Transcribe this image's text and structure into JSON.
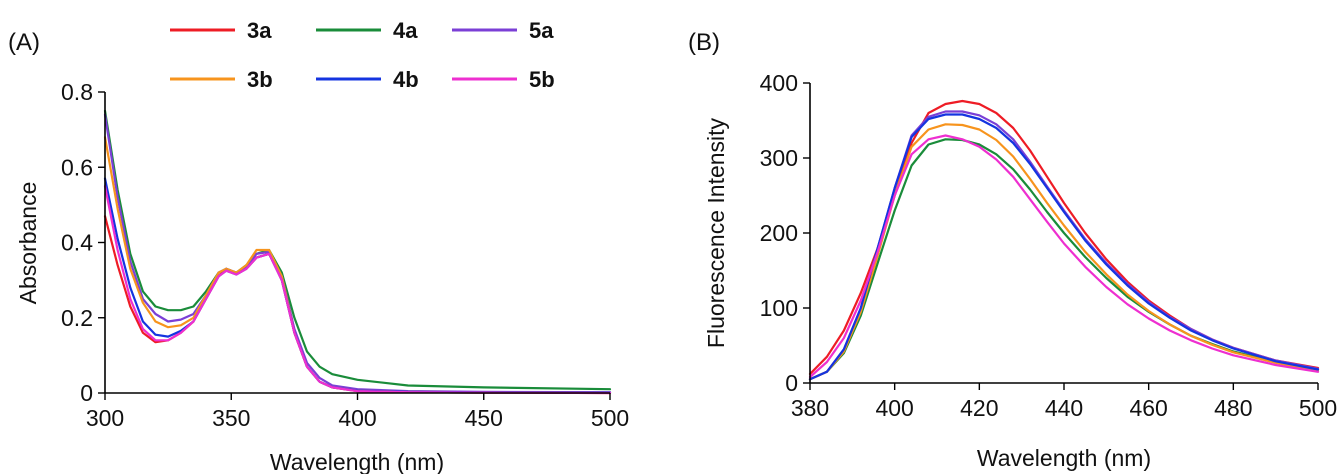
{
  "figure": {
    "panel_a_label": "(A)",
    "panel_b_label": "(B)"
  },
  "legend": {
    "items": [
      {
        "label": "3a",
        "color": "#ee1c25"
      },
      {
        "label": "4a",
        "color": "#1a8c3a"
      },
      {
        "label": "5a",
        "color": "#7b3fd6"
      },
      {
        "label": "3b",
        "color": "#f7941d"
      },
      {
        "label": "4b",
        "color": "#1434e0"
      },
      {
        "label": "5b",
        "color": "#ee2fd0"
      }
    ]
  },
  "chart_data": [
    {
      "type": "line",
      "panel": "(A)",
      "xlabel": "Wavelength (nm)",
      "ylabel": "Absorbance",
      "xlim": [
        300,
        500
      ],
      "ylim": [
        0,
        0.8
      ],
      "xticks": [
        300,
        350,
        400,
        450,
        500
      ],
      "yticks": [
        0,
        0.2,
        0.4,
        0.6,
        0.8
      ],
      "ytick_labels": [
        "0",
        "0.2",
        "0.4",
        "0.6",
        "0.8"
      ],
      "x": [
        300,
        305,
        310,
        315,
        320,
        325,
        330,
        335,
        340,
        345,
        348,
        352,
        356,
        360,
        365,
        370,
        375,
        380,
        385,
        390,
        400,
        420,
        450,
        500
      ],
      "series": [
        {
          "name": "3a",
          "color": "#ee1c25",
          "values": [
            0.47,
            0.34,
            0.23,
            0.16,
            0.135,
            0.14,
            0.16,
            0.19,
            0.25,
            0.31,
            0.33,
            0.32,
            0.33,
            0.36,
            0.37,
            0.3,
            0.16,
            0.07,
            0.03,
            0.015,
            0.005,
            0.002,
            0.001,
            0.0
          ]
        },
        {
          "name": "4a",
          "color": "#1a8c3a",
          "values": [
            0.75,
            0.54,
            0.37,
            0.27,
            0.23,
            0.22,
            0.22,
            0.23,
            0.27,
            0.32,
            0.33,
            0.32,
            0.34,
            0.37,
            0.38,
            0.32,
            0.2,
            0.11,
            0.07,
            0.05,
            0.035,
            0.02,
            0.015,
            0.01
          ]
        },
        {
          "name": "5a",
          "color": "#7b3fd6",
          "values": [
            0.74,
            0.52,
            0.35,
            0.25,
            0.21,
            0.19,
            0.195,
            0.21,
            0.26,
            0.32,
            0.33,
            0.32,
            0.335,
            0.37,
            0.375,
            0.31,
            0.17,
            0.08,
            0.04,
            0.02,
            0.01,
            0.005,
            0.003,
            0.002
          ]
        },
        {
          "name": "3b",
          "color": "#f7941d",
          "values": [
            0.68,
            0.49,
            0.33,
            0.24,
            0.19,
            0.175,
            0.18,
            0.2,
            0.26,
            0.32,
            0.33,
            0.32,
            0.34,
            0.38,
            0.38,
            0.31,
            0.16,
            0.07,
            0.03,
            0.015,
            0.006,
            0.003,
            0.002,
            0.001
          ]
        },
        {
          "name": "4b",
          "color": "#1434e0",
          "values": [
            0.57,
            0.41,
            0.28,
            0.19,
            0.155,
            0.15,
            0.165,
            0.19,
            0.25,
            0.31,
            0.325,
            0.315,
            0.33,
            0.36,
            0.37,
            0.3,
            0.16,
            0.07,
            0.03,
            0.015,
            0.006,
            0.003,
            0.002,
            0.001
          ]
        },
        {
          "name": "5b",
          "color": "#ee2fd0",
          "values": [
            0.55,
            0.38,
            0.25,
            0.17,
            0.14,
            0.14,
            0.16,
            0.19,
            0.25,
            0.31,
            0.325,
            0.315,
            0.33,
            0.36,
            0.37,
            0.3,
            0.16,
            0.07,
            0.03,
            0.015,
            0.005,
            0.002,
            0.001,
            0.0
          ]
        }
      ]
    },
    {
      "type": "line",
      "panel": "(B)",
      "xlabel": "Wavelength (nm)",
      "ylabel": "Fluorescence Intensity",
      "xlim": [
        380,
        500
      ],
      "ylim": [
        0,
        400
      ],
      "xticks": [
        380,
        400,
        420,
        440,
        460,
        480,
        500
      ],
      "yticks": [
        0,
        100,
        200,
        300,
        400
      ],
      "ytick_labels": [
        "0",
        "100",
        "200",
        "300",
        "400"
      ],
      "x": [
        380,
        384,
        388,
        392,
        396,
        400,
        404,
        408,
        412,
        416,
        420,
        424,
        428,
        432,
        436,
        440,
        445,
        450,
        455,
        460,
        465,
        470,
        475,
        480,
        490,
        500
      ],
      "series": [
        {
          "name": "3a",
          "color": "#ee1c25",
          "values": [
            12,
            35,
            70,
            120,
            180,
            250,
            320,
            360,
            372,
            376,
            372,
            360,
            340,
            310,
            275,
            240,
            200,
            165,
            135,
            110,
            90,
            72,
            58,
            47,
            30,
            20
          ]
        },
        {
          "name": "4a",
          "color": "#1a8c3a",
          "values": [
            5,
            15,
            40,
            90,
            160,
            230,
            290,
            318,
            325,
            324,
            318,
            305,
            285,
            258,
            228,
            200,
            168,
            140,
            115,
            95,
            78,
            63,
            52,
            42,
            28,
            18
          ]
        },
        {
          "name": "5a",
          "color": "#7b3fd6",
          "values": [
            5,
            15,
            45,
            100,
            180,
            260,
            330,
            355,
            362,
            362,
            357,
            345,
            325,
            295,
            262,
            230,
            192,
            160,
            132,
            108,
            88,
            72,
            58,
            47,
            30,
            19
          ]
        },
        {
          "name": "3b",
          "color": "#f7941d",
          "values": [
            5,
            15,
            42,
            95,
            170,
            250,
            315,
            338,
            345,
            344,
            338,
            324,
            302,
            272,
            240,
            210,
            175,
            145,
            118,
            96,
            78,
            63,
            51,
            41,
            27,
            16
          ]
        },
        {
          "name": "4b",
          "color": "#1434e0",
          "values": [
            5,
            15,
            45,
            100,
            180,
            260,
            328,
            352,
            358,
            358,
            352,
            340,
            320,
            292,
            260,
            228,
            190,
            158,
            130,
            106,
            87,
            70,
            57,
            46,
            29,
            18
          ]
        },
        {
          "name": "5b",
          "color": "#ee2fd0",
          "values": [
            8,
            28,
            60,
            110,
            175,
            250,
            305,
            325,
            330,
            325,
            315,
            298,
            275,
            245,
            215,
            186,
            155,
            128,
            105,
            86,
            70,
            57,
            46,
            37,
            24,
            15
          ]
        }
      ]
    }
  ]
}
